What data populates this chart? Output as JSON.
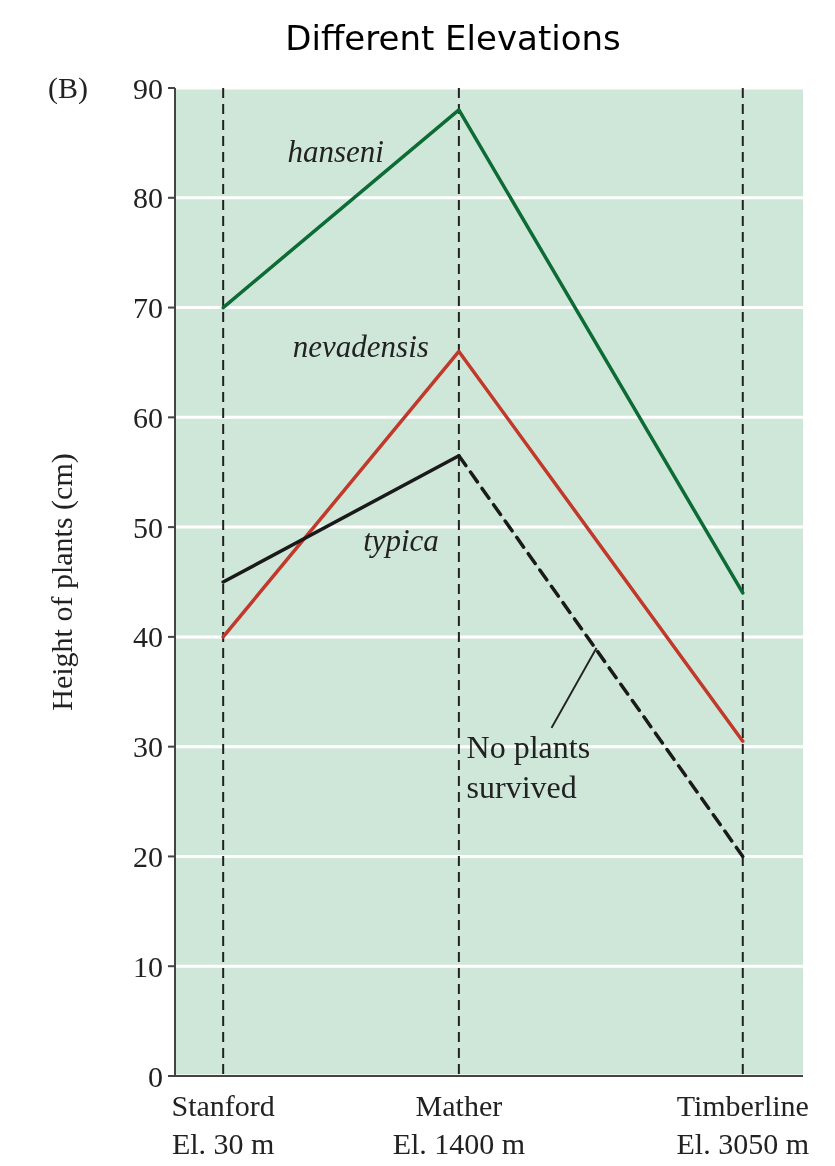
{
  "chart_data": {
    "type": "line",
    "title": "Different Elevations",
    "ylabel": "Height of plants (cm)",
    "x": [
      30,
      1400,
      3050
    ],
    "xlim": [
      -250,
      3400
    ],
    "xticks": [
      {
        "value": 30,
        "label": "Stanford\nEl. 30 m"
      },
      {
        "value": 1400,
        "label": "Mather\nEl. 1400 m"
      },
      {
        "value": 3050,
        "label": "Timberline\nEl. 3050 m"
      }
    ],
    "ylim": [
      0,
      90
    ],
    "yticks": [
      0,
      10,
      20,
      30,
      40,
      50,
      60,
      70,
      80,
      90
    ],
    "grid": true,
    "legend": false,
    "marker": "none",
    "series": [
      {
        "name": "hanseni",
        "color": "#0d6b35",
        "values": [
          70,
          88,
          44
        ]
      },
      {
        "name": "nevadensis",
        "color": "#c0392b",
        "values": [
          40,
          66,
          30.5
        ]
      },
      {
        "name": "typica",
        "color": "#1a1a1a",
        "values": [
          45,
          56.5,
          null
        ]
      },
      {
        "color": "#1a1a1a",
        "x": [
          1400,
          3050
        ],
        "values": [
          56.5,
          20
        ],
        "line_style": "dashed"
      }
    ],
    "annotations": [
      "(B)",
      {
        "text": "No plants\nsurvived",
        "x": 2200,
        "y": 39
      }
    ]
  }
}
